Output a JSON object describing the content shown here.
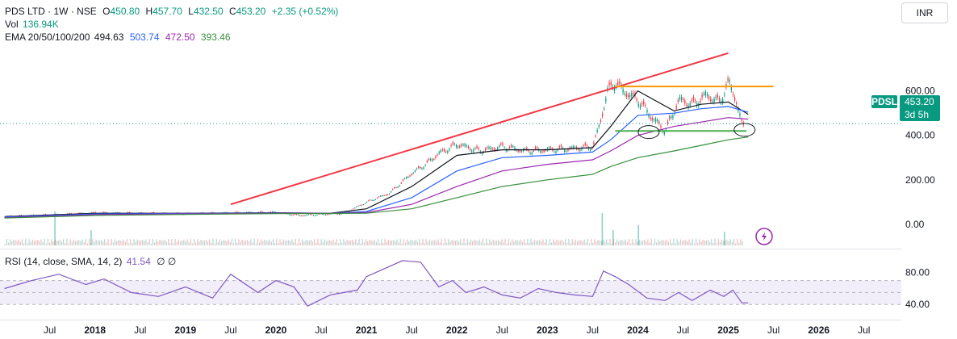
{
  "legend": {
    "symbol": "PDS LTD · 1W · NSE",
    "o_label": "O",
    "o_value": "450.80",
    "h_label": "H",
    "h_value": "457.70",
    "l_label": "L",
    "l_value": "432.50",
    "c_label": "C",
    "c_value": "453.20",
    "change": "+2.35 (+0.52%)",
    "vol_label": "Vol",
    "vol_value": "136.94K",
    "ema_label": "EMA 20/50/100/200",
    "ema_values": [
      "494.63",
      "503.74",
      "472.50",
      "393.46"
    ],
    "ema_colors": [
      "#131722",
      "#2962ff",
      "#9c27b0",
      "#388e3c"
    ],
    "rsi_label": "RSI (14, close, SMA, 14, 2)",
    "rsi_value": "41.54",
    "rsi_extra": "∅ ∅"
  },
  "currency": "INR",
  "price_tag": {
    "ticker": "PDSL",
    "price": "453.20",
    "countdown": "3d 5h"
  },
  "colors": {
    "up": "#089981",
    "down": "#f23645",
    "rsi": "#7e57c2",
    "trend_red": "#f23645",
    "trend_orange": "#ff9800",
    "trend_green": "#4caf50"
  },
  "icons": {
    "lightning": "lightning-icon"
  },
  "chart_data": {
    "type": "line",
    "title": "PDS LTD · 1W · NSE",
    "price_axis_ticks": [
      "600.00",
      "400.00",
      "200.00",
      "0.00"
    ],
    "price_axis_tick_values": [
      600,
      400,
      200,
      0
    ],
    "rsi_axis_ticks": [
      "80.00",
      "40.00"
    ],
    "rsi_axis_tick_values": [
      80,
      40
    ],
    "time_ticks": [
      "Jul",
      "2018",
      "Jul",
      "2019",
      "Jul",
      "2020",
      "Jul",
      "2021",
      "Jul",
      "2022",
      "Jul",
      "2023",
      "Jul",
      "2024",
      "Jul",
      "2025",
      "Jul",
      "2026",
      "Jul"
    ],
    "time_tick_values": [
      2017.5,
      2018.0,
      2018.5,
      2019.0,
      2019.5,
      2020.0,
      2020.5,
      2021.0,
      2021.5,
      2022.0,
      2022.5,
      2023.0,
      2023.5,
      2024.0,
      2024.5,
      2025.0,
      2025.5,
      2026.0,
      2026.5
    ],
    "x_range": [
      2016.95,
      2026.85
    ],
    "ylim": [
      -80,
      820
    ],
    "rsi_ylim": [
      25,
      100
    ],
    "series": [
      {
        "name": "Close",
        "x": [
          2017.0,
          2017.5,
          2018.0,
          2018.5,
          2019.0,
          2019.5,
          2020.0,
          2020.25,
          2020.5,
          2020.75,
          2021.0,
          2021.25,
          2021.5,
          2021.65,
          2021.8,
          2022.0,
          2022.25,
          2022.5,
          2022.75,
          2023.0,
          2023.25,
          2023.5,
          2023.58,
          2023.66,
          2023.75,
          2023.83,
          2024.0,
          2024.15,
          2024.3,
          2024.45,
          2024.6,
          2024.75,
          2024.9,
          2025.0,
          2025.08,
          2025.15,
          2025.22
        ],
        "y": [
          35,
          42,
          52,
          50,
          48,
          52,
          55,
          40,
          45,
          50,
          100,
          140,
          230,
          270,
          320,
          360,
          330,
          350,
          330,
          335,
          340,
          350,
          460,
          600,
          640,
          600,
          560,
          480,
          420,
          560,
          540,
          580,
          550,
          640,
          560,
          440,
          453
        ]
      },
      {
        "name": "EMA 20",
        "x": [
          2017.0,
          2018.0,
          2019.0,
          2020.0,
          2020.6,
          2021.0,
          2021.5,
          2022.0,
          2022.5,
          2023.0,
          2023.5,
          2023.7,
          2024.0,
          2024.4,
          2024.7,
          2025.0,
          2025.22
        ],
        "y": [
          35,
          50,
          50,
          52,
          50,
          70,
          170,
          310,
          335,
          335,
          345,
          440,
          600,
          510,
          540,
          550,
          495
        ]
      },
      {
        "name": "EMA 50",
        "x": [
          2017.0,
          2018.0,
          2019.0,
          2020.0,
          2020.6,
          2021.0,
          2021.5,
          2022.0,
          2022.5,
          2023.0,
          2023.5,
          2023.7,
          2024.0,
          2024.4,
          2024.7,
          2025.0,
          2025.22
        ],
        "y": [
          33,
          47,
          49,
          51,
          50,
          58,
          120,
          240,
          300,
          310,
          325,
          380,
          490,
          500,
          520,
          530,
          504
        ]
      },
      {
        "name": "EMA 100",
        "x": [
          2017.0,
          2018.0,
          2019.0,
          2020.0,
          2020.6,
          2021.0,
          2021.5,
          2022.0,
          2022.5,
          2023.0,
          2023.5,
          2023.7,
          2024.0,
          2024.4,
          2024.7,
          2025.0,
          2025.22
        ],
        "y": [
          30,
          44,
          47,
          50,
          50,
          53,
          90,
          170,
          240,
          270,
          290,
          330,
          400,
          440,
          460,
          480,
          473
        ]
      },
      {
        "name": "EMA 200",
        "x": [
          2017.0,
          2018.0,
          2019.0,
          2020.0,
          2020.6,
          2021.0,
          2021.5,
          2022.0,
          2022.5,
          2023.0,
          2023.5,
          2023.7,
          2024.0,
          2024.4,
          2024.7,
          2025.0,
          2025.22
        ],
        "y": [
          28,
          40,
          45,
          48,
          49,
          50,
          70,
          120,
          170,
          200,
          225,
          260,
          300,
          330,
          355,
          380,
          393
        ]
      }
    ],
    "rsi": {
      "x": [
        2017.0,
        2017.3,
        2017.6,
        2017.9,
        2018.1,
        2018.4,
        2018.7,
        2019.0,
        2019.3,
        2019.5,
        2019.8,
        2020.0,
        2020.2,
        2020.35,
        2020.6,
        2020.9,
        2021.0,
        2021.2,
        2021.4,
        2021.6,
        2021.8,
        2021.95,
        2022.1,
        2022.3,
        2022.5,
        2022.7,
        2022.9,
        2023.1,
        2023.3,
        2023.5,
        2023.62,
        2023.75,
        2023.9,
        2024.1,
        2024.3,
        2024.45,
        2024.6,
        2024.8,
        2024.95,
        2025.05,
        2025.15,
        2025.22
      ],
      "y": [
        60,
        70,
        78,
        65,
        72,
        55,
        50,
        62,
        48,
        78,
        55,
        70,
        62,
        38,
        52,
        58,
        75,
        85,
        95,
        93,
        62,
        70,
        55,
        62,
        52,
        48,
        60,
        55,
        52,
        50,
        82,
        75,
        65,
        48,
        45,
        55,
        45,
        58,
        50,
        58,
        42,
        42
      ]
    },
    "rsi_band": [
      40,
      70
    ],
    "trendlines": [
      {
        "name": "rising-resistance",
        "x": [
          2019.5,
          2025.0
        ],
        "y": [
          90,
          770
        ]
      },
      {
        "name": "horizontal-resistance",
        "x": [
          2023.75,
          2025.5
        ],
        "y": [
          620,
          620
        ]
      },
      {
        "name": "horizontal-support",
        "x": [
          2023.75,
          2025.2
        ],
        "y": [
          420,
          420
        ]
      }
    ],
    "markers": [
      {
        "name": "support-circle-1",
        "x": 2024.12,
        "y": 415
      },
      {
        "name": "support-circle-2",
        "x": 2025.18,
        "y": 425
      }
    ],
    "volume_spikes": [
      {
        "x": 2017.55,
        "value": 1.0
      },
      {
        "x": 2017.95,
        "value": 0.45
      },
      {
        "x": 2023.6,
        "value": 0.95
      },
      {
        "x": 2023.72,
        "value": 0.45
      },
      {
        "x": 2024.0,
        "value": 0.6
      },
      {
        "x": 2024.95,
        "value": 0.4
      }
    ],
    "price_line": 453.2,
    "grid": false
  }
}
